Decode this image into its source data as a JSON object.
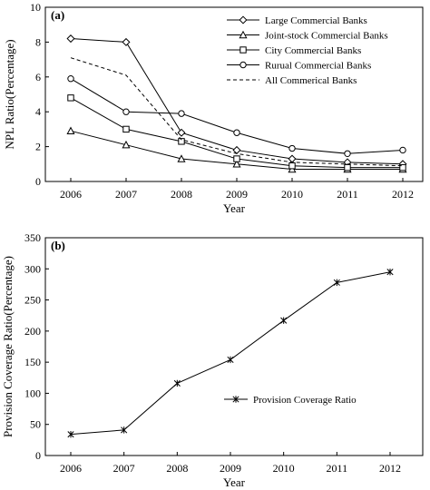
{
  "chart_data": [
    {
      "type": "line",
      "panel_label": "(a)",
      "x": [
        "2006",
        "2007",
        "2008",
        "2009",
        "2010",
        "2011",
        "2012"
      ],
      "xlabel": "Year",
      "ylabel": "NPL Ratio(Percentage)",
      "ylim": [
        0,
        10
      ],
      "yticks": [
        "0",
        "2",
        "4",
        "6",
        "8",
        "10"
      ],
      "grid": false,
      "legend_position": "top-right",
      "series": [
        {
          "name": "Large Commercial Banks",
          "marker": "diamond",
          "dash": false,
          "values": [
            8.2,
            8.0,
            2.8,
            1.8,
            1.3,
            1.1,
            1.0
          ]
        },
        {
          "name": "Joint-stock Commercial Banks",
          "marker": "triangle",
          "dash": false,
          "values": [
            2.9,
            2.1,
            1.3,
            1.0,
            0.7,
            0.7,
            0.7
          ]
        },
        {
          "name": "City Commercial Banks",
          "marker": "square",
          "dash": false,
          "values": [
            4.8,
            3.0,
            2.3,
            1.3,
            0.9,
            0.8,
            0.8
          ]
        },
        {
          "name": "Rurual Commercial Banks",
          "marker": "circle",
          "dash": false,
          "values": [
            5.9,
            4.0,
            3.9,
            2.8,
            1.9,
            1.6,
            1.8
          ]
        },
        {
          "name": "All Commerical Banks",
          "marker": "none",
          "dash": true,
          "values": [
            7.1,
            6.1,
            2.4,
            1.6,
            1.1,
            1.0,
            0.9
          ]
        }
      ]
    },
    {
      "type": "line",
      "panel_label": "(b)",
      "x": [
        "2006",
        "2007",
        "2008",
        "2009",
        "2010",
        "2011",
        "2012"
      ],
      "xlabel": "Year",
      "ylabel": "Provision Coverage Ratio(Percentage)",
      "ylim": [
        0,
        350
      ],
      "yticks": [
        "0",
        "50",
        "100",
        "150",
        "200",
        "250",
        "300",
        "350"
      ],
      "grid": false,
      "legend_position": "center-right",
      "series": [
        {
          "name": "Provision Coverage Ratio",
          "marker": "star",
          "dash": false,
          "values": [
            34,
            41,
            116,
            154,
            217,
            278,
            295
          ]
        }
      ]
    }
  ]
}
